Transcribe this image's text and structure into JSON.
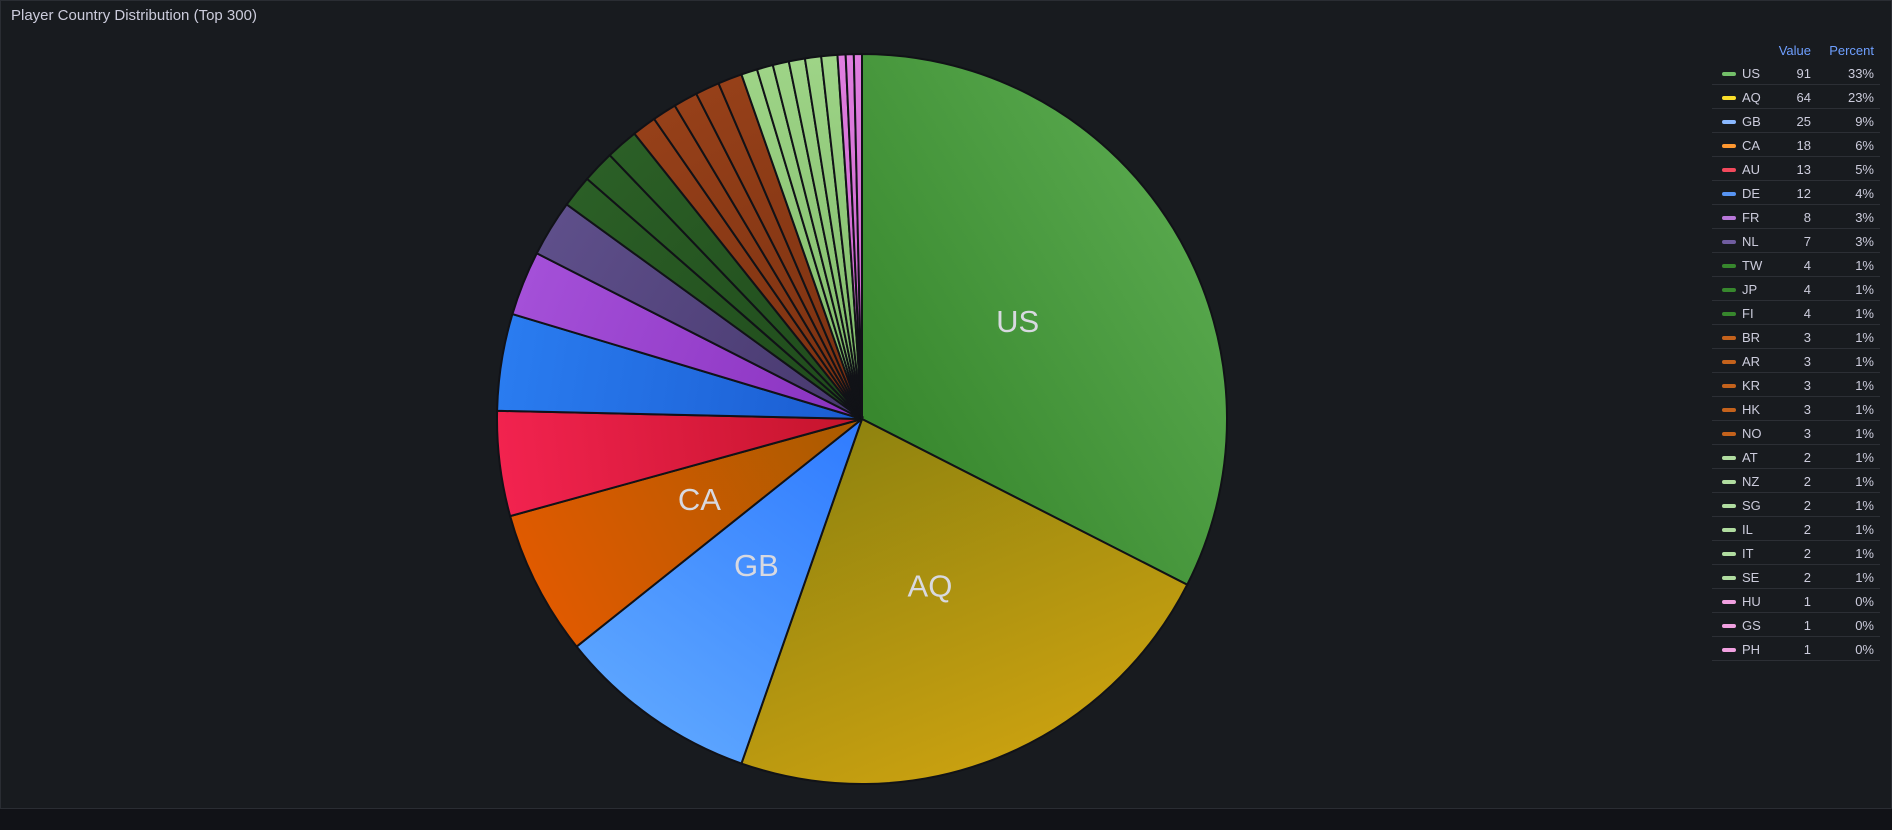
{
  "panel": {
    "title": "Player Country Distribution (Top 300)"
  },
  "legend": {
    "value_header": "Value",
    "percent_header": "Percent"
  },
  "chart_data": {
    "type": "pie",
    "title": "Player Country Distribution (Top 300)",
    "slice_labels_shown": [
      "US",
      "AQ",
      "GB",
      "CA"
    ],
    "legend_position": "right",
    "slices": [
      {
        "label": "US",
        "value": 91,
        "percent": "33%",
        "color": "#56a64b",
        "color_dark": "#37872d"
      },
      {
        "label": "AQ",
        "value": 64,
        "percent": "23%",
        "color": "#c8a010",
        "color_dark": "#8f830f"
      },
      {
        "label": "GB",
        "value": 25,
        "percent": "9%",
        "color": "#5ba4ff",
        "color_dark": "#2f7bff"
      },
      {
        "label": "CA",
        "value": 18,
        "percent": "6%",
        "color": "#e05a00",
        "color_dark": "#a95b00"
      },
      {
        "label": "AU",
        "value": 13,
        "percent": "5%",
        "color": "#f2234f",
        "color_dark": "#c4142c"
      },
      {
        "label": "DE",
        "value": 12,
        "percent": "4%",
        "color": "#2a7cf0",
        "color_dark": "#1a5cd0"
      },
      {
        "label": "FR",
        "value": 8,
        "percent": "3%",
        "color": "#a450d8",
        "color_dark": "#8a32c0"
      },
      {
        "label": "NL",
        "value": 7,
        "percent": "3%",
        "color": "#5e4f8a",
        "color_dark": "#47386e"
      },
      {
        "label": "TW",
        "value": 4,
        "percent": "1%",
        "color": "#2b5f26",
        "color_dark": "#1f4a1b"
      },
      {
        "label": "JP",
        "value": 4,
        "percent": "1%",
        "color": "#2b5f26",
        "color_dark": "#1f4a1b"
      },
      {
        "label": "FI",
        "value": 4,
        "percent": "1%",
        "color": "#2b5f26",
        "color_dark": "#1f4a1b"
      },
      {
        "label": "BR",
        "value": 3,
        "percent": "1%",
        "color": "#964019",
        "color_dark": "#7a3010"
      },
      {
        "label": "AR",
        "value": 3,
        "percent": "1%",
        "color": "#964019",
        "color_dark": "#7a3010"
      },
      {
        "label": "KR",
        "value": 3,
        "percent": "1%",
        "color": "#964019",
        "color_dark": "#7a3010"
      },
      {
        "label": "HK",
        "value": 3,
        "percent": "1%",
        "color": "#964019",
        "color_dark": "#7a3010"
      },
      {
        "label": "NO",
        "value": 3,
        "percent": "1%",
        "color": "#964019",
        "color_dark": "#7a3010"
      },
      {
        "label": "AT",
        "value": 2,
        "percent": "1%",
        "color": "#9ed487",
        "color_dark": "#7cb866"
      },
      {
        "label": "NZ",
        "value": 2,
        "percent": "1%",
        "color": "#9ed487",
        "color_dark": "#7cb866"
      },
      {
        "label": "SG",
        "value": 2,
        "percent": "1%",
        "color": "#9ed487",
        "color_dark": "#7cb866"
      },
      {
        "label": "IL",
        "value": 2,
        "percent": "1%",
        "color": "#9ed487",
        "color_dark": "#7cb866"
      },
      {
        "label": "IT",
        "value": 2,
        "percent": "1%",
        "color": "#9ed487",
        "color_dark": "#7cb866"
      },
      {
        "label": "SE",
        "value": 2,
        "percent": "1%",
        "color": "#9ed487",
        "color_dark": "#7cb866"
      },
      {
        "label": "HU",
        "value": 1,
        "percent": "0%",
        "color": "#e07ee0",
        "color_dark": "#c860c8"
      },
      {
        "label": "GS",
        "value": 1,
        "percent": "0%",
        "color": "#e07ee0",
        "color_dark": "#c860c8"
      },
      {
        "label": "PH",
        "value": 1,
        "percent": "0%",
        "color": "#e07ee0",
        "color_dark": "#c860c8"
      }
    ],
    "legend_colors": {
      "US": "#73bf69",
      "AQ": "#fade2a",
      "GB": "#8ab8ff",
      "CA": "#ff9830",
      "AU": "#f2495c",
      "DE": "#5794f2",
      "FR": "#b877d9",
      "NL": "#705da0",
      "TW": "#37872d",
      "JP": "#37872d",
      "FI": "#37872d",
      "BR": "#c4621c",
      "AR": "#c4621c",
      "KR": "#c4621c",
      "HK": "#c4621c",
      "NO": "#c4621c",
      "AT": "#b0dca0",
      "NZ": "#b0dca0",
      "SG": "#b0dca0",
      "IL": "#b0dca0",
      "IT": "#b0dca0",
      "SE": "#b0dca0",
      "HU": "#f0a0e0",
      "GS": "#f0a0e0",
      "PH": "#f0a0e0"
    }
  }
}
